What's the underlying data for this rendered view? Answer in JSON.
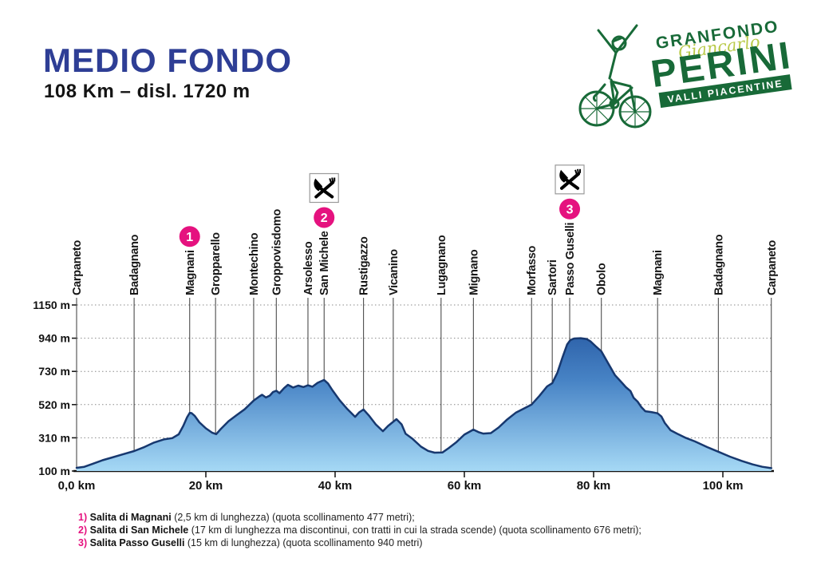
{
  "header": {
    "title": "MEDIO FONDO",
    "subtitle": "108 Km – disl. 1720 m"
  },
  "logo": {
    "line1": "GRANFONDO",
    "script": "Giancarlo",
    "line2": "PERINI",
    "banner": "VALLI PIACENTINE",
    "green_dark": "#186a38",
    "green_light": "#b9ca49"
  },
  "colors": {
    "title_blue": "#2e3e95",
    "magenta": "#e5127f",
    "profile_gradient_top": "#1d4d98",
    "profile_gradient_mid": "#4783c5",
    "profile_gradient_bottom": "#a7daf6",
    "profile_outline": "#17386f",
    "gridline": "#8a8a8a",
    "location_line": "#3a3a3a",
    "axis": "#111111"
  },
  "chart_data": {
    "type": "area",
    "title": "Elevation profile Medio Fondo",
    "xlabel": "km",
    "ylabel": "m",
    "xlim": [
      0,
      107.5
    ],
    "ylim": [
      100,
      1150
    ],
    "grid": "dotted-horizontal",
    "x_ticks": [
      {
        "km": 0,
        "label": "0,0 km"
      },
      {
        "km": 20,
        "label": "20 km"
      },
      {
        "km": 40,
        "label": "40 km"
      },
      {
        "km": 60,
        "label": "60 km"
      },
      {
        "km": 80,
        "label": "80 km"
      },
      {
        "km": 100,
        "label": "100 km"
      }
    ],
    "y_ticks": [
      {
        "m": 1150,
        "label": "1150 m"
      },
      {
        "m": 940,
        "label": "940 m"
      },
      {
        "m": 730,
        "label": "730 m"
      },
      {
        "m": 520,
        "label": "520 m"
      },
      {
        "m": 310,
        "label": "310 m"
      },
      {
        "m": 100,
        "label": "100 m"
      }
    ],
    "locations": [
      {
        "name": "Carpaneto",
        "km": 0
      },
      {
        "name": "Badagnano",
        "km": 8.9
      },
      {
        "name": "Magnani",
        "km": 17.5,
        "marker": "1"
      },
      {
        "name": "Gropparello",
        "km": 21.5
      },
      {
        "name": "Montechino",
        "km": 27.4
      },
      {
        "name": "Groppovisdomo",
        "km": 30.9
      },
      {
        "name": "Arsolesso",
        "km": 35.8
      },
      {
        "name": "San Michele",
        "km": 38.3,
        "marker": "2",
        "food": true
      },
      {
        "name": "Rustigazzo",
        "km": 44.4
      },
      {
        "name": "Vicanino",
        "km": 49.0
      },
      {
        "name": "Lugagnano",
        "km": 56.4
      },
      {
        "name": "Mignano",
        "km": 61.4
      },
      {
        "name": "Morfasso",
        "km": 70.4
      },
      {
        "name": "Sartori",
        "km": 73.6
      },
      {
        "name": "Passo Guselli",
        "km": 76.3,
        "marker": "3",
        "food": true
      },
      {
        "name": "Obolo",
        "km": 81.2
      },
      {
        "name": "Magnani",
        "km": 89.9
      },
      {
        "name": "Badagnano",
        "km": 99.3
      },
      {
        "name": "Carpaneto",
        "km": 107.5
      }
    ],
    "profile": [
      [
        0,
        120
      ],
      [
        1.2,
        127
      ],
      [
        2.5,
        146
      ],
      [
        4,
        168
      ],
      [
        5.5,
        186
      ],
      [
        7,
        204
      ],
      [
        8.9,
        226
      ],
      [
        10.5,
        252
      ],
      [
        12,
        280
      ],
      [
        13.5,
        300
      ],
      [
        14.8,
        308
      ],
      [
        15.8,
        332
      ],
      [
        16.5,
        385
      ],
      [
        17.1,
        440
      ],
      [
        17.5,
        468
      ],
      [
        17.8,
        466
      ],
      [
        18.3,
        448
      ],
      [
        19,
        408
      ],
      [
        20,
        370
      ],
      [
        21,
        342
      ],
      [
        21.6,
        333
      ],
      [
        22.3,
        365
      ],
      [
        23.5,
        415
      ],
      [
        24.8,
        455
      ],
      [
        26,
        490
      ],
      [
        27.4,
        545
      ],
      [
        28.3,
        572
      ],
      [
        28.7,
        582
      ],
      [
        29.3,
        565
      ],
      [
        29.9,
        577
      ],
      [
        30.4,
        600
      ],
      [
        30.9,
        608
      ],
      [
        31.4,
        592
      ],
      [
        32.1,
        624
      ],
      [
        32.7,
        645
      ],
      [
        33.5,
        628
      ],
      [
        34.3,
        640
      ],
      [
        35.1,
        631
      ],
      [
        35.8,
        642
      ],
      [
        36.5,
        633
      ],
      [
        37.3,
        658
      ],
      [
        38.3,
        676
      ],
      [
        38.9,
        654
      ],
      [
        39.6,
        610
      ],
      [
        40.7,
        548
      ],
      [
        41.8,
        496
      ],
      [
        43.1,
        443
      ],
      [
        43.7,
        470
      ],
      [
        44.4,
        489
      ],
      [
        45.3,
        448
      ],
      [
        46.3,
        395
      ],
      [
        47.4,
        352
      ],
      [
        48.2,
        385
      ],
      [
        49.5,
        428
      ],
      [
        50.3,
        395
      ],
      [
        50.9,
        336
      ],
      [
        52,
        303
      ],
      [
        53.3,
        254
      ],
      [
        54.4,
        227
      ],
      [
        55.4,
        216
      ],
      [
        56.6,
        217
      ],
      [
        57.6,
        246
      ],
      [
        58.7,
        280
      ],
      [
        60,
        330
      ],
      [
        61.4,
        362
      ],
      [
        62.2,
        346
      ],
      [
        62.9,
        337
      ],
      [
        64.1,
        340
      ],
      [
        65.3,
        375
      ],
      [
        66.6,
        425
      ],
      [
        68,
        470
      ],
      [
        69.3,
        497
      ],
      [
        70.4,
        520
      ],
      [
        71.6,
        575
      ],
      [
        72.8,
        635
      ],
      [
        73.6,
        656
      ],
      [
        74.4,
        722
      ],
      [
        75.2,
        820
      ],
      [
        75.9,
        900
      ],
      [
        76.4,
        928
      ],
      [
        77,
        938
      ],
      [
        78,
        940
      ],
      [
        78.9,
        935
      ],
      [
        79.5,
        921
      ],
      [
        80.3,
        890
      ],
      [
        81.2,
        857
      ],
      [
        82.2,
        785
      ],
      [
        83.3,
        707
      ],
      [
        84.4,
        658
      ],
      [
        85,
        630
      ],
      [
        85.7,
        606
      ],
      [
        86.2,
        563
      ],
      [
        86.8,
        539
      ],
      [
        87.4,
        504
      ],
      [
        88,
        478
      ],
      [
        88.9,
        473
      ],
      [
        89.9,
        465
      ],
      [
        90.5,
        445
      ],
      [
        91,
        405
      ],
      [
        91.9,
        358
      ],
      [
        92.9,
        337
      ],
      [
        94.3,
        309
      ],
      [
        95.7,
        287
      ],
      [
        97.6,
        251
      ],
      [
        99.3,
        222
      ],
      [
        101.1,
        191
      ],
      [
        102.9,
        164
      ],
      [
        104.6,
        142
      ],
      [
        106.1,
        127
      ],
      [
        107.5,
        118
      ]
    ]
  },
  "legend": [
    {
      "num": "1)",
      "name": "Salita di Magnani",
      "rest": " (2,5 km di lunghezza) (quota scollinamento 477 metri);"
    },
    {
      "num": "2)",
      "name": "Salita di San Michele",
      "rest": " (17 km di lunghezza ma discontinui, con tratti in cui la strada scende) (quota scollinamento 676 metri);"
    },
    {
      "num": "3)",
      "name": "Salita Passo Guselli",
      "rest": " (15 km di lunghezza) (quota scollinamento 940 metri)"
    }
  ]
}
